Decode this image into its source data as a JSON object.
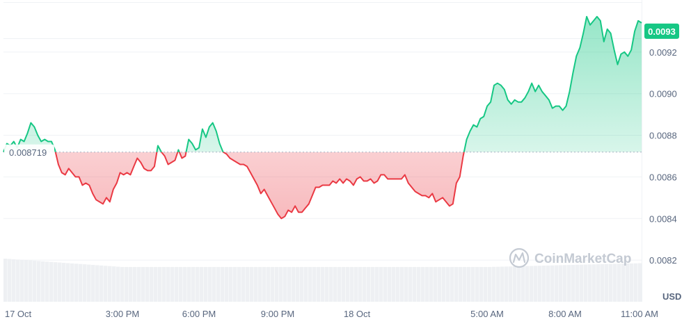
{
  "chart_data": {
    "type": "area",
    "baseline": 0.008719,
    "baseline_label": "0.008719",
    "current_value": 0.0093,
    "current_label": "0.0093",
    "currency": "USD",
    "watermark": "CoinMarketCap",
    "ylim": [
      0.008,
      0.00945
    ],
    "y_ticks": [
      {
        "value": 0.0082,
        "label": "0.0082"
      },
      {
        "value": 0.0084,
        "label": "0.0084"
      },
      {
        "value": 0.0086,
        "label": "0.0086"
      },
      {
        "value": 0.0088,
        "label": "0.0088"
      },
      {
        "value": 0.009,
        "label": "0.0090"
      },
      {
        "value": 0.0092,
        "label": "0.0092"
      }
    ],
    "x_ticks": [
      "17 Oct",
      "3:00 PM",
      "6:00 PM",
      "9:00 PM",
      "18 Oct",
      "5:00 AM",
      "8:00 AM",
      "11:00 AM"
    ],
    "values": [
      0.00872,
      0.00876,
      0.00875,
      0.00877,
      0.00874,
      0.00878,
      0.00877,
      0.00881,
      0.00886,
      0.00884,
      0.0088,
      0.00877,
      0.00878,
      0.00877,
      0.00877,
      0.00873,
      0.00866,
      0.00862,
      0.00861,
      0.00864,
      0.00862,
      0.0086,
      0.0086,
      0.00856,
      0.00857,
      0.00856,
      0.00852,
      0.00849,
      0.00848,
      0.00847,
      0.0085,
      0.00848,
      0.00854,
      0.00857,
      0.00862,
      0.00861,
      0.00862,
      0.00861,
      0.00865,
      0.00869,
      0.00867,
      0.00864,
      0.00863,
      0.00863,
      0.00865,
      0.00875,
      0.00872,
      0.0087,
      0.00866,
      0.00867,
      0.00868,
      0.00873,
      0.00869,
      0.0087,
      0.00878,
      0.00876,
      0.00873,
      0.00874,
      0.00883,
      0.00879,
      0.00884,
      0.00886,
      0.00882,
      0.00876,
      0.00872,
      0.00871,
      0.00869,
      0.00868,
      0.00867,
      0.00866,
      0.00866,
      0.00865,
      0.00862,
      0.00859,
      0.00856,
      0.00852,
      0.00854,
      0.00851,
      0.00848,
      0.00845,
      0.00842,
      0.0084,
      0.00841,
      0.00844,
      0.00843,
      0.00846,
      0.00843,
      0.00843,
      0.00845,
      0.00847,
      0.00851,
      0.00855,
      0.00855,
      0.00856,
      0.00856,
      0.00856,
      0.00858,
      0.00857,
      0.00859,
      0.00857,
      0.00859,
      0.00858,
      0.00856,
      0.00859,
      0.0086,
      0.00858,
      0.00858,
      0.00859,
      0.00857,
      0.00858,
      0.00861,
      0.00861,
      0.00859,
      0.00859,
      0.00859,
      0.00859,
      0.00859,
      0.00861,
      0.00857,
      0.00855,
      0.00853,
      0.00852,
      0.00851,
      0.00851,
      0.0085,
      0.00852,
      0.00848,
      0.00849,
      0.0085,
      0.00848,
      0.00846,
      0.00847,
      0.00857,
      0.0086,
      0.0087,
      0.00878,
      0.00882,
      0.00885,
      0.00884,
      0.00888,
      0.00889,
      0.00894,
      0.00896,
      0.00904,
      0.00905,
      0.00904,
      0.00902,
      0.00897,
      0.00895,
      0.00897,
      0.00896,
      0.00896,
      0.00898,
      0.00901,
      0.00905,
      0.00901,
      0.00904,
      0.00901,
      0.00899,
      0.00897,
      0.00893,
      0.00894,
      0.00894,
      0.00892,
      0.00894,
      0.00901,
      0.0091,
      0.00918,
      0.00922,
      0.00929,
      0.00937,
      0.00933,
      0.00935,
      0.00937,
      0.00935,
      0.00925,
      0.00931,
      0.00929,
      0.00921,
      0.00914,
      0.00919,
      0.0092,
      0.00918,
      0.00921,
      0.0093,
      0.00935,
      0.00934
    ]
  }
}
